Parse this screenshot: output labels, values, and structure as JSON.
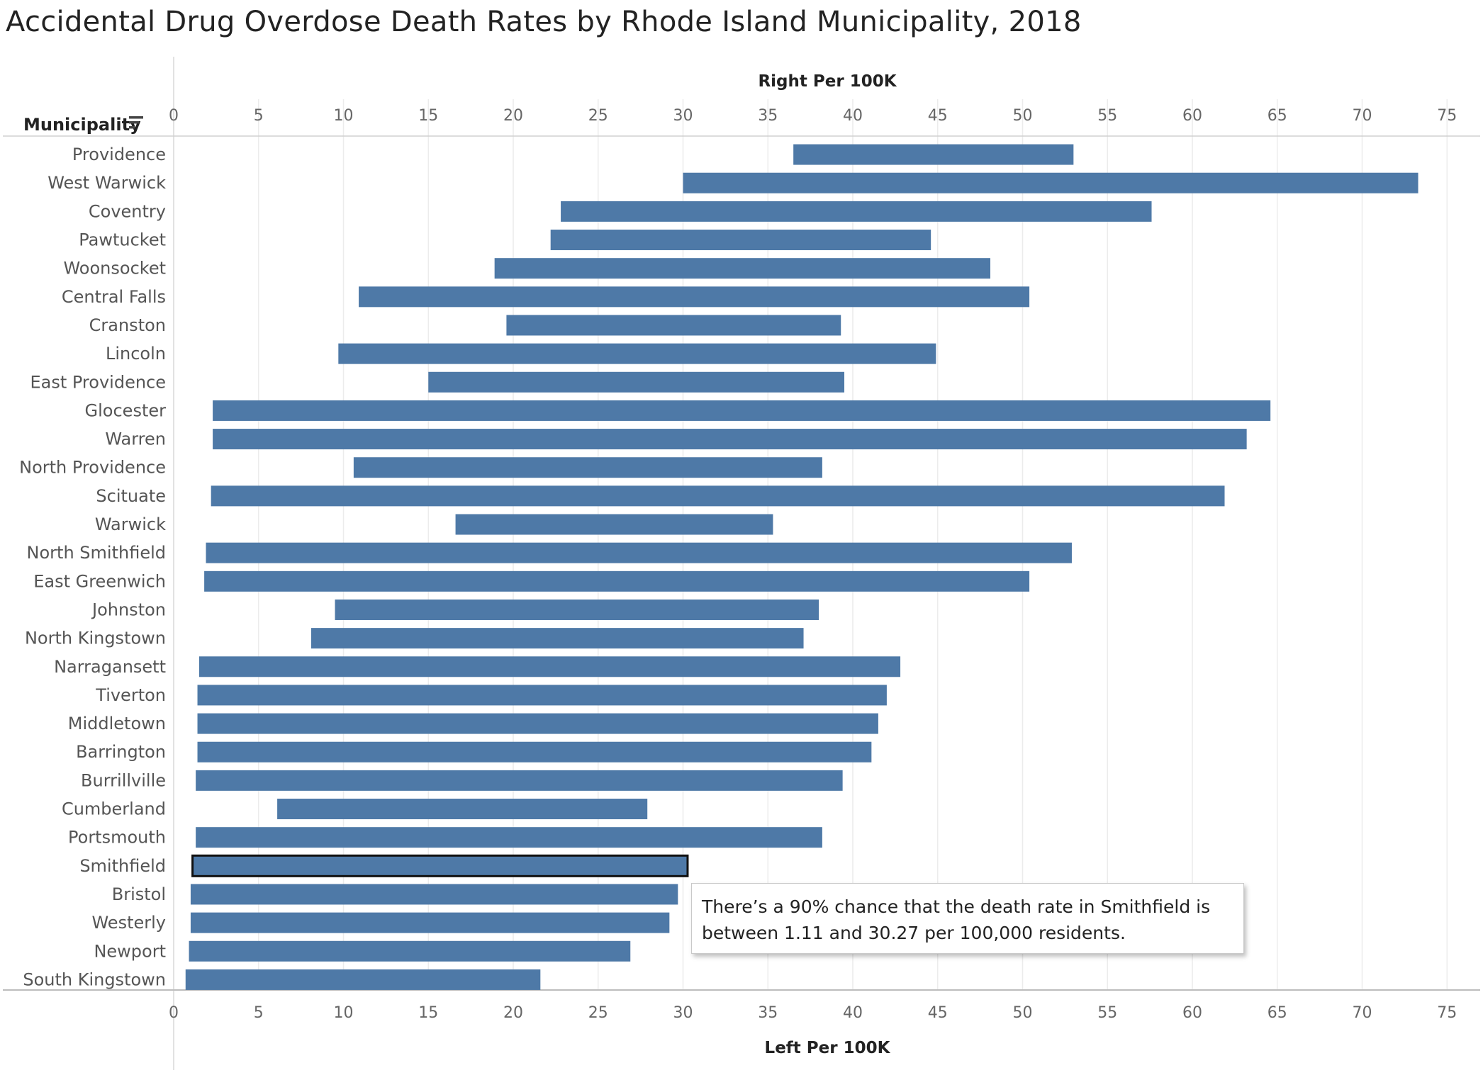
{
  "title": "Accidental Drug Overdose Death Rates by Rhode Island Municipality, 2018",
  "column_header": "Municipality",
  "sort_icon": "sort-descending-icon",
  "tooltip": {
    "line1": "There’s a 90% chance that the death rate in Smithfield is",
    "line2": "between 1.11 and 30.27 per 100,000 residents."
  },
  "colors": {
    "bar": "#4e79a7",
    "bar_outline_selected": "#111111",
    "grid": "#ececec",
    "axis_line": "#cccccc"
  },
  "chart_data": {
    "type": "bar",
    "orientation": "horizontal-range",
    "top_axis_title": "Right Per 100K",
    "bottom_axis_title": "Left Per 100K",
    "ylabel": "Municipality",
    "xlim": [
      0,
      77
    ],
    "ticks": [
      0,
      5,
      10,
      15,
      20,
      25,
      30,
      35,
      40,
      45,
      50,
      55,
      60,
      65,
      70,
      75
    ],
    "tick_labels": [
      "0",
      "5",
      "10",
      "15",
      "20",
      "25",
      "30",
      "35",
      "40",
      "45",
      "50",
      "55",
      "60",
      "65",
      "70",
      "75"
    ],
    "grid": true,
    "selected": "Smithfield",
    "categories": [
      "Providence",
      "West Warwick",
      "Coventry",
      "Pawtucket",
      "Woonsocket",
      "Central Falls",
      "Cranston",
      "Lincoln",
      "East Providence",
      "Glocester",
      "Warren",
      "North Providence",
      "Scituate",
      "Warwick",
      "North Smithfield",
      "East Greenwich",
      "Johnston",
      "North Kingstown",
      "Narragansett",
      "Tiverton",
      "Middletown",
      "Barrington",
      "Burrillville",
      "Cumberland",
      "Portsmouth",
      "Smithfield",
      "Bristol",
      "Westerly",
      "Newport",
      "South Kingstown"
    ],
    "series": [
      {
        "name": "Left Per 100K",
        "values": [
          36.5,
          30.0,
          22.8,
          22.2,
          18.9,
          10.9,
          19.6,
          9.7,
          15.0,
          2.3,
          2.3,
          10.6,
          2.2,
          16.6,
          1.9,
          1.8,
          9.5,
          8.1,
          1.5,
          1.4,
          1.4,
          1.4,
          1.3,
          6.1,
          1.3,
          1.11,
          1.0,
          1.0,
          0.9,
          0.7
        ]
      },
      {
        "name": "Right Per 100K",
        "values": [
          53.0,
          73.3,
          57.6,
          44.6,
          48.1,
          50.4,
          39.3,
          44.9,
          39.5,
          64.6,
          63.2,
          38.2,
          61.9,
          35.3,
          52.9,
          50.4,
          38.0,
          37.1,
          42.8,
          42.0,
          41.5,
          41.1,
          39.4,
          27.9,
          38.2,
          30.27,
          29.7,
          29.2,
          26.9,
          21.6
        ]
      }
    ]
  }
}
